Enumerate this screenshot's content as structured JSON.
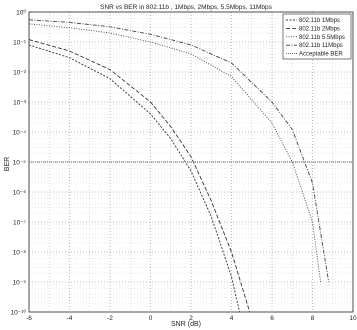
{
  "chart_data": {
    "type": "line",
    "title": "SNR vs BER in 802.11b , 1Mbps, 2Mbps, 5.5Mbps, 11Mbps",
    "xlabel": "SNR (dB)",
    "ylabel": "BER",
    "xlim": [
      -6,
      10
    ],
    "y_scale": "log",
    "ylim": [
      1e-10,
      1
    ],
    "x_ticks": [
      "-6",
      "-4",
      "-2",
      "0",
      "2",
      "4",
      "6",
      "8",
      "10"
    ],
    "y_ticks": [
      "10⁰",
      "10⁻¹",
      "10⁻²",
      "10⁻³",
      "10⁻⁴",
      "10⁻⁵",
      "10⁻⁶",
      "10⁻⁷",
      "10⁻⁸",
      "10⁻⁹",
      "10⁻¹⁰"
    ],
    "grid": true,
    "legend_position": "top-right",
    "series": [
      {
        "name": "802.11b 1Mbps",
        "color": "#333333",
        "x": [
          -6,
          -4,
          -2,
          0,
          1,
          2,
          3,
          4,
          4.4
        ],
        "y": [
          0.08,
          0.03,
          0.006,
          0.0004,
          6e-05,
          5e-06,
          1.5e-07,
          1.5e-09,
          1e-10
        ]
      },
      {
        "name": "802.11b 2Mbps",
        "color": "#333333",
        "x": [
          -6,
          -4,
          -2,
          0,
          1,
          2,
          3,
          4,
          4.9
        ],
        "y": [
          0.12,
          0.05,
          0.012,
          0.001,
          0.00015,
          1.5e-05,
          5e-07,
          1e-08,
          1e-10
        ]
      },
      {
        "name": "802.11b 5.5Mbps",
        "color": "#444444",
        "x": [
          -6,
          -4,
          -2,
          0,
          2,
          4,
          6,
          7,
          8,
          8.4
        ],
        "y": [
          0.4,
          0.3,
          0.2,
          0.1,
          0.04,
          0.007,
          0.0002,
          1e-05,
          1e-07,
          1e-09
        ]
      },
      {
        "name": "802.11b 11Mbps",
        "color": "#444444",
        "x": [
          -6,
          -4,
          -2,
          0,
          2,
          4,
          6,
          7,
          8,
          8.8
        ],
        "y": [
          0.55,
          0.45,
          0.32,
          0.18,
          0.08,
          0.02,
          0.001,
          0.00012,
          2e-06,
          1e-09
        ]
      },
      {
        "name": "Acceptable BER",
        "color": "#555555",
        "x": [
          -6,
          10
        ],
        "y": [
          1e-05,
          1e-05
        ]
      }
    ]
  }
}
